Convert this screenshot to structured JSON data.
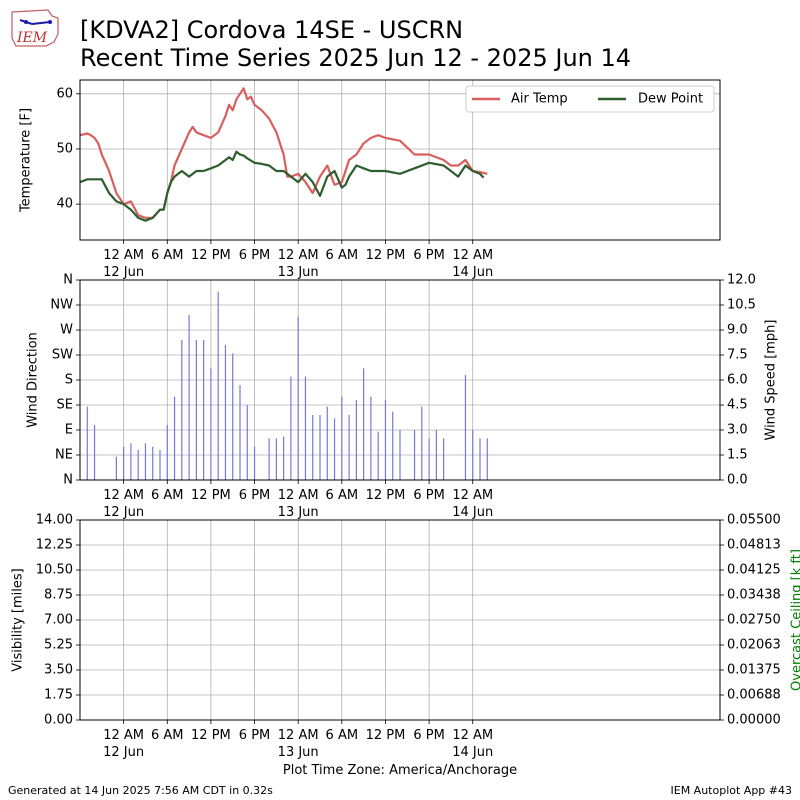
{
  "header": {
    "title_line1": "[KDVA2] Cordova 14SE - USCRN",
    "title_line2": "Recent Time Series 2025 Jun 12 - 2025 Jun 14",
    "logo_text": "IEM"
  },
  "footer": {
    "generated": "Generated at 14 Jun 2025 7:56 AM CDT in 0.32s",
    "app": "IEM Autoplot App #43",
    "timezone_label": "Plot Time Zone: America/Anchorage"
  },
  "colors": {
    "air_temp": "#d95f5f",
    "dew_point": "#2e5e2e",
    "wind_bars": "#7777dd",
    "grid": "#b0b0b0",
    "ceiling_label": "#008000"
  },
  "chart_data": [
    {
      "type": "line",
      "ylabel": "Temperature [F]",
      "ylim": [
        33.5,
        62.5
      ],
      "yticks": [
        40,
        50,
        60
      ],
      "xlim": [
        -6,
        82
      ],
      "xticks": [
        {
          "x": 0,
          "line1": "12 AM",
          "line2": "12 Jun"
        },
        {
          "x": 6,
          "line1": "6 AM",
          "line2": ""
        },
        {
          "x": 12,
          "line1": "12 PM",
          "line2": ""
        },
        {
          "x": 18,
          "line1": "6 PM",
          "line2": ""
        },
        {
          "x": 24,
          "line1": "12 AM",
          "line2": "13 Jun"
        },
        {
          "x": 30,
          "line1": "6 AM",
          "line2": ""
        },
        {
          "x": 36,
          "line1": "12 PM",
          "line2": ""
        },
        {
          "x": 42,
          "line1": "6 PM",
          "line2": ""
        },
        {
          "x": 48,
          "line1": "12 AM",
          "line2": "14 Jun"
        }
      ],
      "grid": true,
      "legend": "top-right",
      "series": [
        {
          "name": "Air Temp",
          "x": [
            -6,
            -5,
            -4.5,
            -4,
            -3.5,
            -3,
            -2,
            -1,
            0,
            1,
            2,
            3,
            4,
            5,
            5.5,
            6,
            6.5,
            7,
            8,
            9,
            9.5,
            10,
            11,
            12,
            13,
            14,
            14.5,
            15,
            15.5,
            16,
            16.5,
            17,
            17.5,
            18,
            19,
            20,
            21,
            22,
            22.5,
            23,
            24,
            25,
            26,
            27,
            28,
            29,
            30,
            30.5,
            31,
            32,
            33,
            34,
            35,
            36,
            38,
            40,
            42,
            44,
            45,
            46,
            47,
            48,
            49,
            50
          ],
          "y": [
            52.5,
            52.8,
            52.5,
            52,
            51,
            49,
            46,
            42,
            40,
            40.5,
            38,
            37.5,
            37.5,
            39,
            39,
            42,
            44,
            47,
            50,
            53,
            54,
            53,
            52.5,
            52,
            53,
            56,
            58,
            57,
            59,
            60,
            61,
            59,
            59.5,
            58,
            57,
            55.5,
            53,
            49,
            45,
            45,
            45.5,
            44,
            42,
            45,
            47,
            43.5,
            44,
            46,
            48,
            49,
            51,
            52,
            52.5,
            52,
            51.5,
            49,
            49,
            48,
            47,
            47,
            48,
            46,
            45.8,
            45.5
          ]
        },
        {
          "name": "Dew Point",
          "x": [
            -6,
            -5,
            -4,
            -3,
            -2,
            -1,
            0,
            1,
            2,
            3,
            4,
            5,
            5.5,
            6,
            6.5,
            7,
            8,
            9,
            10,
            11,
            12,
            13,
            14,
            14.5,
            15,
            15.5,
            16,
            16.5,
            17,
            18,
            19,
            20,
            21,
            22,
            23,
            24,
            25,
            26,
            27,
            28,
            29,
            30,
            30.5,
            31,
            32,
            33,
            34,
            36,
            38,
            40,
            42,
            44,
            45,
            46,
            47,
            48,
            49,
            49.5
          ],
          "y": [
            44,
            44.5,
            44.5,
            44.5,
            42,
            40.5,
            40,
            39,
            37.5,
            37,
            37.5,
            39,
            39,
            42,
            44,
            45,
            46,
            45,
            46,
            46,
            46.5,
            47,
            48,
            48.5,
            48,
            49.5,
            49,
            48.8,
            48.3,
            47.5,
            47.3,
            47,
            46,
            46,
            45,
            44,
            45.5,
            44,
            41.5,
            45,
            46,
            43,
            43.5,
            45,
            47,
            46.5,
            46,
            46,
            45.5,
            46.5,
            47.5,
            47,
            46,
            45,
            47,
            46,
            45.5,
            44.8
          ]
        }
      ]
    },
    {
      "type": "bar",
      "ylabel": "Wind Direction",
      "y2label": "Wind Speed [mph]",
      "yticks_direction": [
        "N",
        "NE",
        "E",
        "SE",
        "S",
        "SW",
        "W",
        "NW",
        "N"
      ],
      "y2lim": [
        0,
        12
      ],
      "y2ticks": [
        "0.0",
        "1.5",
        "3.0",
        "4.5",
        "6.0",
        "7.5",
        "9.0",
        "10.5",
        "12.0"
      ],
      "xlim": [
        -6,
        82
      ],
      "xticks": [
        {
          "x": 0,
          "line1": "12 AM",
          "line2": "12 Jun"
        },
        {
          "x": 6,
          "line1": "6 AM",
          "line2": ""
        },
        {
          "x": 12,
          "line1": "12 PM",
          "line2": ""
        },
        {
          "x": 18,
          "line1": "6 PM",
          "line2": ""
        },
        {
          "x": 24,
          "line1": "12 AM",
          "line2": "13 Jun"
        },
        {
          "x": 30,
          "line1": "6 AM",
          "line2": ""
        },
        {
          "x": 36,
          "line1": "12 PM",
          "line2": ""
        },
        {
          "x": 42,
          "line1": "6 PM",
          "line2": ""
        },
        {
          "x": 48,
          "line1": "12 AM",
          "line2": "14 Jun"
        }
      ],
      "grid": true,
      "x": [
        -5,
        -4,
        -1,
        0,
        1,
        2,
        3,
        4,
        5,
        6,
        7,
        8,
        9,
        10,
        11,
        12,
        13,
        14,
        15,
        16,
        17,
        18,
        20,
        21,
        22,
        23,
        24,
        25,
        26,
        27,
        28,
        29,
        30,
        31,
        32,
        33,
        34,
        35,
        36,
        37,
        38,
        40,
        41,
        42,
        43,
        44,
        47,
        48,
        49,
        50
      ],
      "values": [
        4.4,
        3.3,
        1.4,
        2.0,
        2.2,
        1.8,
        2.2,
        2.0,
        1.8,
        3.3,
        5.0,
        8.4,
        9.9,
        8.4,
        8.4,
        6.7,
        11.3,
        8.1,
        7.6,
        5.7,
        4.5,
        2.0,
        2.5,
        2.5,
        2.6,
        6.2,
        9.8,
        6.2,
        3.9,
        3.9,
        4.4,
        3.7,
        5.0,
        3.9,
        4.8,
        6.7,
        5.0,
        2.9,
        4.8,
        4.1,
        3.0,
        3.0,
        4.4,
        2.5,
        3.0,
        2.5,
        6.3,
        3.0,
        2.5,
        2.5
      ]
    },
    {
      "type": "line",
      "ylabel": "Visibility [miles]",
      "y2label": "Overcast Ceiling [k ft]",
      "ylim": [
        0,
        14
      ],
      "yticks": [
        "0.00",
        "1.75",
        "3.50",
        "5.25",
        "7.00",
        "8.75",
        "10.50",
        "12.25",
        "14.00"
      ],
      "y2lim": [
        0,
        0.055
      ],
      "y2ticks": [
        "0.00000",
        "0.00688",
        "0.01375",
        "0.02063",
        "0.02750",
        "0.03438",
        "0.04125",
        "0.04813",
        "0.05500"
      ],
      "xlim": [
        -6,
        82
      ],
      "xticks": [
        {
          "x": 0,
          "line1": "12 AM",
          "line2": "12 Jun"
        },
        {
          "x": 6,
          "line1": "6 AM",
          "line2": ""
        },
        {
          "x": 12,
          "line1": "12 PM",
          "line2": ""
        },
        {
          "x": 18,
          "line1": "6 PM",
          "line2": ""
        },
        {
          "x": 24,
          "line1": "12 AM",
          "line2": "13 Jun"
        },
        {
          "x": 30,
          "line1": "6 AM",
          "line2": ""
        },
        {
          "x": 36,
          "line1": "12 PM",
          "line2": ""
        },
        {
          "x": 42,
          "line1": "6 PM",
          "line2": ""
        },
        {
          "x": 48,
          "line1": "12 AM",
          "line2": "14 Jun"
        }
      ],
      "grid": true,
      "series": []
    }
  ]
}
